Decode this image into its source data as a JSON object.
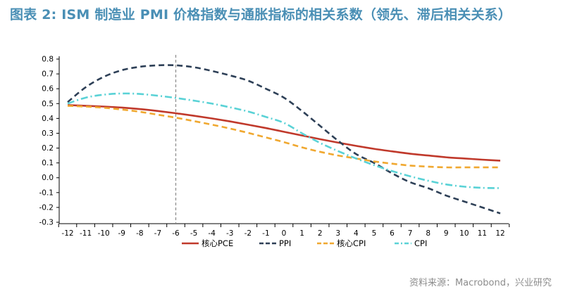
{
  "title": "图表 2: ISM 制造业 PMI 价格指数与通胀指标的相关系数（领先、滞后相关关系）",
  "source": "资料来源：Macrobond，兴业研究",
  "chart_data": {
    "type": "line",
    "title": "图表 2: ISM 制造业 PMI 价格指数与通胀指标的相关系数（领先、滞后相关关系）",
    "xlabel": "",
    "ylabel": "",
    "x": [
      -12,
      -11,
      -10,
      -9,
      -8,
      -7,
      -6,
      -5,
      -4,
      -3,
      -2,
      -1,
      0,
      1,
      2,
      3,
      4,
      5,
      6,
      7,
      8,
      9,
      10,
      11,
      12
    ],
    "xlim": [
      -12,
      12
    ],
    "ylim": [
      -0.3,
      0.8
    ],
    "yticks": [
      -0.3,
      -0.2,
      -0.1,
      0.0,
      0.1,
      0.2,
      0.3,
      0.4,
      0.5,
      0.6,
      0.7,
      0.8
    ],
    "ytick_labels": [
      "-0.3",
      "-0.2",
      "-0.1",
      "0.0",
      "0.1",
      "0.2",
      "0.3",
      "0.4",
      "0.5",
      "0.6",
      "0.7",
      "0.8"
    ],
    "reference_line_x": -6,
    "grid": false,
    "legend_position": "bottom",
    "series": [
      {
        "name": "核心PCE",
        "color": "#c0392b",
        "dash": "solid",
        "values": [
          0.49,
          0.485,
          0.48,
          0.473,
          0.463,
          0.45,
          0.435,
          0.418,
          0.4,
          0.38,
          0.358,
          0.335,
          0.31,
          0.285,
          0.26,
          0.237,
          0.215,
          0.195,
          0.178,
          0.162,
          0.15,
          0.138,
          0.13,
          0.122,
          0.115
        ]
      },
      {
        "name": "PPI",
        "color": "#2e4057",
        "dash": "dashed",
        "values": [
          0.51,
          0.61,
          0.68,
          0.725,
          0.748,
          0.758,
          0.758,
          0.745,
          0.72,
          0.69,
          0.655,
          0.6,
          0.54,
          0.45,
          0.35,
          0.25,
          0.16,
          0.1,
          0.03,
          -0.03,
          -0.07,
          -0.12,
          -0.16,
          -0.2,
          -0.24
        ]
      },
      {
        "name": "核心CPI",
        "color": "#f0a830",
        "dash": "dashed",
        "values": [
          0.485,
          0.48,
          0.472,
          0.46,
          0.445,
          0.425,
          0.405,
          0.382,
          0.358,
          0.332,
          0.303,
          0.272,
          0.24,
          0.205,
          0.175,
          0.15,
          0.13,
          0.11,
          0.095,
          0.082,
          0.075,
          0.07,
          0.07,
          0.07,
          0.07
        ]
      },
      {
        "name": "CPI",
        "color": "#5ad2d6",
        "dash": "dashdot",
        "values": [
          0.5,
          0.54,
          0.56,
          0.568,
          0.565,
          0.553,
          0.538,
          0.52,
          0.5,
          0.475,
          0.447,
          0.41,
          0.37,
          0.3,
          0.235,
          0.18,
          0.13,
          0.085,
          0.045,
          0.01,
          -0.02,
          -0.045,
          -0.06,
          -0.068,
          -0.07
        ]
      }
    ]
  }
}
